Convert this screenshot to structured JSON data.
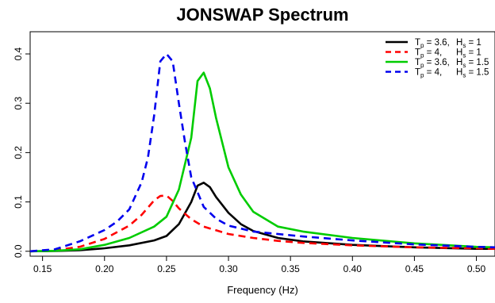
{
  "chart_data": {
    "type": "line",
    "title": "JONSWAP Spectrum",
    "xlabel": "Frequency (Hz)",
    "ylabel": "",
    "xlim": [
      0.14,
      0.515
    ],
    "ylim": [
      -0.01,
      0.445
    ],
    "xticks": [
      0.15,
      0.2,
      0.25,
      0.3,
      0.35,
      0.4,
      0.45,
      0.5
    ],
    "xtick_labels": [
      "0.15",
      "0.20",
      "0.25",
      "0.30",
      "0.35",
      "0.40",
      "0.45",
      "0.50"
    ],
    "yticks": [
      0.0,
      0.1,
      0.2,
      0.3,
      0.4
    ],
    "ytick_labels": [
      "0.0",
      "0.1",
      "0.2",
      "0.3",
      "0.4"
    ],
    "grid": false,
    "legend_position": "top-right",
    "series": [
      {
        "legend": {
          "T": "T",
          "tsub": "p",
          "tval": "= 3.6,",
          "H": "H",
          "hsub": "s",
          "hval": "= 1"
        },
        "color": "#000000",
        "style": "solid",
        "x": [
          0.14,
          0.16,
          0.18,
          0.2,
          0.22,
          0.24,
          0.25,
          0.26,
          0.27,
          0.275,
          0.28,
          0.285,
          0.29,
          0.3,
          0.31,
          0.32,
          0.34,
          0.36,
          0.4,
          0.45,
          0.5,
          0.515
        ],
        "y": [
          0.0,
          0.0005,
          0.002,
          0.006,
          0.012,
          0.022,
          0.031,
          0.055,
          0.1,
          0.133,
          0.139,
          0.13,
          0.11,
          0.078,
          0.055,
          0.041,
          0.027,
          0.02,
          0.013,
          0.008,
          0.005,
          0.005
        ]
      },
      {
        "legend": {
          "T": "T",
          "tsub": "p",
          "tval": "= 4,",
          "H": "H",
          "hsub": "s",
          "hval": "= 1"
        },
        "color": "#ff0000",
        "style": "dashed",
        "x": [
          0.14,
          0.16,
          0.18,
          0.2,
          0.22,
          0.23,
          0.24,
          0.245,
          0.25,
          0.255,
          0.26,
          0.27,
          0.28,
          0.3,
          0.32,
          0.34,
          0.36,
          0.4,
          0.45,
          0.5,
          0.515
        ],
        "y": [
          0.0,
          0.002,
          0.009,
          0.025,
          0.052,
          0.074,
          0.103,
          0.112,
          0.113,
          0.102,
          0.087,
          0.065,
          0.05,
          0.035,
          0.027,
          0.021,
          0.017,
          0.012,
          0.008,
          0.006,
          0.005
        ]
      },
      {
        "legend": {
          "T": "T",
          "tsub": "p",
          "tval": "= 3.6,",
          "H": "H",
          "hsub": "s",
          "hval": "= 1.5"
        },
        "color": "#00cc00",
        "style": "solid",
        "x": [
          0.14,
          0.16,
          0.18,
          0.2,
          0.22,
          0.24,
          0.25,
          0.26,
          0.27,
          0.275,
          0.28,
          0.285,
          0.29,
          0.3,
          0.31,
          0.32,
          0.34,
          0.36,
          0.4,
          0.45,
          0.5,
          0.515
        ],
        "y": [
          0.0,
          0.001,
          0.004,
          0.013,
          0.027,
          0.05,
          0.07,
          0.125,
          0.23,
          0.345,
          0.362,
          0.33,
          0.27,
          0.17,
          0.115,
          0.08,
          0.05,
          0.04,
          0.027,
          0.016,
          0.009,
          0.008
        ]
      },
      {
        "legend": {
          "T": "T",
          "tsub": "p",
          "tval": "= 4,",
          "H": "H",
          "hsub": "s",
          "hval": "= 1.5"
        },
        "color": "#0000ee",
        "style": "dashed",
        "x": [
          0.14,
          0.16,
          0.18,
          0.2,
          0.21,
          0.22,
          0.23,
          0.235,
          0.24,
          0.245,
          0.25,
          0.255,
          0.26,
          0.265,
          0.27,
          0.28,
          0.29,
          0.3,
          0.32,
          0.34,
          0.36,
          0.4,
          0.45,
          0.5,
          0.515
        ],
        "y": [
          0.0,
          0.004,
          0.02,
          0.043,
          0.06,
          0.085,
          0.14,
          0.19,
          0.275,
          0.385,
          0.4,
          0.385,
          0.3,
          0.22,
          0.15,
          0.09,
          0.066,
          0.052,
          0.04,
          0.035,
          0.03,
          0.022,
          0.014,
          0.009,
          0.008
        ]
      }
    ]
  }
}
